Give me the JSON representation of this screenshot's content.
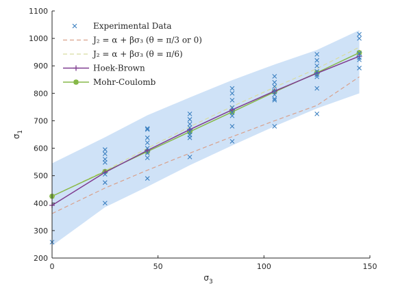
{
  "chart_data": {
    "type": "scatter",
    "title": "",
    "xlabel": "σ",
    "xlabel_sub": "3",
    "ylabel": "σ",
    "ylabel_sub": "1",
    "xlim": [
      0,
      150
    ],
    "ylim": [
      200,
      1100
    ],
    "xticks": [
      0,
      50,
      100,
      150
    ],
    "yticks": [
      200,
      300,
      400,
      500,
      600,
      700,
      800,
      900,
      1000,
      1100
    ],
    "grid": false,
    "legend_position": "top-left",
    "colors": {
      "experimental": "#3a7fc0",
      "j2_pi3": "#d9a08a",
      "j2_pi6": "#d8dca0",
      "hoek_brown": "#7e3b8f",
      "mohr_coulomb": "#86b848",
      "band": "#cfe2f7",
      "axis": "#262626"
    },
    "series": [
      {
        "name": "Experimental Data",
        "legend_label": "Experimental Data",
        "style": "markers-x",
        "points": [
          [
            0,
            258
          ],
          [
            25,
            595
          ],
          [
            25,
            580
          ],
          [
            25,
            560
          ],
          [
            25,
            548
          ],
          [
            25,
            505
          ],
          [
            25,
            475
          ],
          [
            25,
            400
          ],
          [
            45,
            672
          ],
          [
            45,
            668
          ],
          [
            45,
            638
          ],
          [
            45,
            620
          ],
          [
            45,
            600
          ],
          [
            45,
            582
          ],
          [
            45,
            565
          ],
          [
            45,
            490
          ],
          [
            65,
            725
          ],
          [
            65,
            705
          ],
          [
            65,
            688
          ],
          [
            65,
            675
          ],
          [
            65,
            660
          ],
          [
            65,
            648
          ],
          [
            65,
            638
          ],
          [
            65,
            568
          ],
          [
            85,
            818
          ],
          [
            85,
            800
          ],
          [
            85,
            775
          ],
          [
            85,
            748
          ],
          [
            85,
            730
          ],
          [
            85,
            718
          ],
          [
            85,
            680
          ],
          [
            85,
            625
          ],
          [
            105,
            862
          ],
          [
            105,
            840
          ],
          [
            105,
            825
          ],
          [
            105,
            808
          ],
          [
            105,
            795
          ],
          [
            105,
            780
          ],
          [
            105,
            775
          ],
          [
            105,
            680
          ],
          [
            125,
            942
          ],
          [
            125,
            920
          ],
          [
            125,
            900
          ],
          [
            125,
            880
          ],
          [
            125,
            868
          ],
          [
            125,
            860
          ],
          [
            125,
            818
          ],
          [
            125,
            725
          ],
          [
            145,
            1015
          ],
          [
            145,
            1000
          ],
          [
            145,
            945
          ],
          [
            145,
            930
          ],
          [
            145,
            922
          ],
          [
            145,
            892
          ]
        ]
      },
      {
        "name": "J2 pi/3",
        "legend_label": "J₂ = α + βσ₃ (θ = π/3 or 0)",
        "style": "dashed",
        "x": [
          0,
          25,
          45,
          65,
          85,
          105,
          125,
          145
        ],
        "y": [
          362,
          455,
          520,
          582,
          642,
          700,
          756,
          860
        ]
      },
      {
        "name": "J2 pi/6",
        "legend_label": "J₂ = α + βσ₃ (θ = π/6)",
        "style": "dashed",
        "x": [
          0,
          25,
          45,
          65,
          85,
          105,
          125,
          145
        ],
        "y": [
          425,
          518,
          600,
          678,
          752,
          822,
          890,
          968
        ]
      },
      {
        "name": "Hoek-Brown",
        "legend_label": "Hoek-Brown",
        "style": "line-plus",
        "x": [
          0,
          25,
          45,
          65,
          85,
          105,
          125,
          145
        ],
        "y": [
          392,
          512,
          592,
          668,
          740,
          808,
          873,
          935
        ]
      },
      {
        "name": "Mohr-Coulomb",
        "legend_label": "Mohr-Coulomb",
        "style": "line-asterisk",
        "x": [
          0,
          25,
          45,
          65,
          85,
          105,
          125,
          145
        ],
        "y": [
          425,
          515,
          588,
          660,
          732,
          805,
          875,
          948
        ]
      },
      {
        "name": "Confidence band",
        "style": "band",
        "x": [
          0,
          25,
          45,
          65,
          85,
          105,
          125,
          145
        ],
        "upper": [
          545,
          640,
          720,
          785,
          848,
          905,
          958,
          1030
        ],
        "lower": [
          245,
          385,
          460,
          538,
          610,
          680,
          745,
          800
        ]
      }
    ]
  }
}
